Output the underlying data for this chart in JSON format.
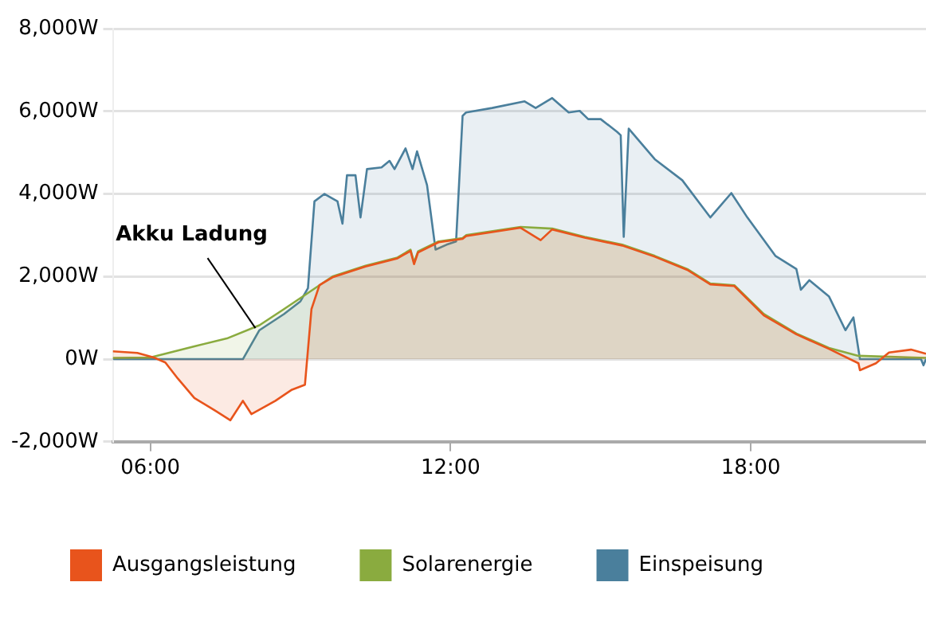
{
  "chart_data": {
    "type": "area",
    "x": [
      5.25,
      5.74,
      6.07,
      6.3,
      6.55,
      6.88,
      7.3,
      7.6,
      7.85,
      8.02,
      8.5,
      8.83,
      9.09,
      9.22,
      9.38,
      9.64,
      10.3,
      10.94,
      11.2,
      11.27,
      11.35,
      11.76,
      12.24,
      12.31,
      13.4,
      13.8,
      14.03,
      14.68,
      15.43,
      16.08,
      16.73,
      17.19,
      17.67,
      18.26,
      18.91,
      19.56,
      20.15,
      20.18,
      20.5,
      20.76,
      21.2,
      21.5
    ],
    "series": [
      {
        "name": "Ausgangsleistung",
        "color": "#e8541c",
        "values": [
          190,
          150,
          40,
          -80,
          -470,
          -940,
          -1250,
          -1480,
          -1010,
          -1330,
          -1010,
          -740,
          -620,
          1210,
          1790,
          1980,
          2240,
          2440,
          2620,
          2300,
          2580,
          2830,
          2910,
          2980,
          3180,
          2880,
          3140,
          2940,
          2750,
          2480,
          2160,
          1810,
          1770,
          1060,
          600,
          250,
          -100,
          -270,
          -100,
          160,
          230,
          130
        ]
      },
      {
        "name": "Solarenergie",
        "color": "#8aab3f",
        "x": [
          5.25,
          6.0,
          6.88,
          7.53,
          8.18,
          8.67,
          9.15,
          9.64,
          10.3,
          10.94,
          11.2,
          11.27,
          11.35,
          11.76,
          12.24,
          12.31,
          13.4,
          14.03,
          14.68,
          15.43,
          16.08,
          16.73,
          17.19,
          17.67,
          18.26,
          18.91,
          19.56,
          20.15,
          21.5
        ],
        "values": [
          30,
          40,
          310,
          500,
          820,
          1210,
          1600,
          2000,
          2260,
          2460,
          2650,
          2340,
          2610,
          2850,
          2930,
          3000,
          3200,
          3160,
          2960,
          2770,
          2500,
          2180,
          1830,
          1790,
          1090,
          620,
          270,
          80,
          30
        ]
      },
      {
        "name": "Einspeisung",
        "color": "#4a7f9c",
        "x": [
          5.25,
          7.85,
          8.18,
          8.67,
          9.0,
          9.15,
          9.28,
          9.48,
          9.74,
          9.84,
          9.93,
          10.1,
          10.2,
          10.33,
          10.62,
          10.78,
          10.88,
          11.1,
          11.24,
          11.33,
          11.53,
          11.7,
          11.92,
          12.11,
          12.24,
          12.31,
          12.83,
          13.48,
          13.7,
          14.03,
          14.36,
          14.58,
          14.75,
          15.0,
          15.33,
          15.4,
          15.46,
          15.56,
          16.08,
          16.63,
          17.19,
          17.61,
          17.93,
          18.49,
          18.91,
          19.0,
          19.17,
          19.56,
          19.89,
          20.05,
          20.18,
          20.44,
          21.4,
          21.45,
          21.5
        ],
        "values": [
          0,
          0,
          700,
          1090,
          1400,
          1720,
          3820,
          4000,
          3820,
          3280,
          4450,
          4450,
          3430,
          4600,
          4640,
          4800,
          4600,
          5100,
          4600,
          5030,
          4210,
          2650,
          2770,
          2850,
          5890,
          5970,
          6080,
          6240,
          6080,
          6320,
          5970,
          6010,
          5810,
          5810,
          5500,
          5420,
          2960,
          5580,
          4840,
          4330,
          3430,
          4020,
          3430,
          2500,
          2180,
          1680,
          1910,
          1520,
          700,
          1010,
          0,
          0,
          0,
          -150,
          0
        ]
      }
    ],
    "xlim": [
      5.25,
      21.5
    ],
    "xticks": [
      {
        "value": 6,
        "label": "06:00"
      },
      {
        "value": 12,
        "label": "12:00"
      },
      {
        "value": 18,
        "label": "18:00"
      }
    ],
    "ylim": [
      -2000,
      8000
    ],
    "yticks": [
      {
        "value": -2000,
        "label": "-2,000W"
      },
      {
        "value": 0,
        "label": "0W"
      },
      {
        "value": 2000,
        "label": "2,000W"
      },
      {
        "value": 4000,
        "label": "4,000W"
      },
      {
        "value": 6000,
        "label": "6,000W"
      },
      {
        "value": 8000,
        "label": "8,000W"
      }
    ],
    "grid": "y",
    "legend": "bottom",
    "marker": "none",
    "line_style": "solid",
    "annotations": [
      {
        "text": "Akku Ladung",
        "x": 8.1,
        "y": 750
      }
    ]
  }
}
